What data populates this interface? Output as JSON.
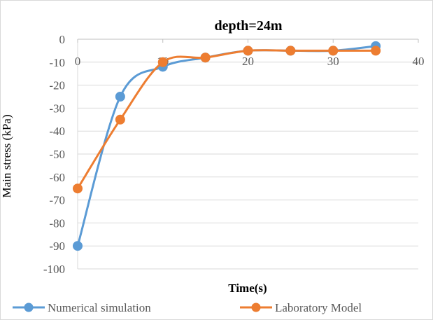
{
  "chart_data": {
    "type": "line",
    "title": "depth=24m",
    "xlabel": "Time(s)",
    "ylabel": "Main stress (kPa)",
    "xlim": [
      0,
      40
    ],
    "ylim": [
      -100,
      0
    ],
    "xticks": [
      0,
      10,
      20,
      30,
      40
    ],
    "yticks": [
      0,
      -10,
      -20,
      -30,
      -40,
      -50,
      -60,
      -70,
      -80,
      -90,
      -100
    ],
    "grid": true,
    "legend_position": "bottom",
    "series": [
      {
        "name": "Numerical simulation",
        "color": "#5b9bd5",
        "x": [
          0,
          5,
          10,
          15,
          20,
          25,
          30,
          35
        ],
        "y": [
          -90,
          -25,
          -12,
          -8,
          -5,
          -5,
          -5,
          -3
        ]
      },
      {
        "name": "Laboratory Model",
        "color": "#ed7d31",
        "x": [
          0,
          5,
          10,
          15,
          20,
          25,
          30,
          35
        ],
        "y": [
          -65,
          -35,
          -10,
          -8,
          -5,
          -5,
          -5,
          -5
        ]
      }
    ]
  }
}
